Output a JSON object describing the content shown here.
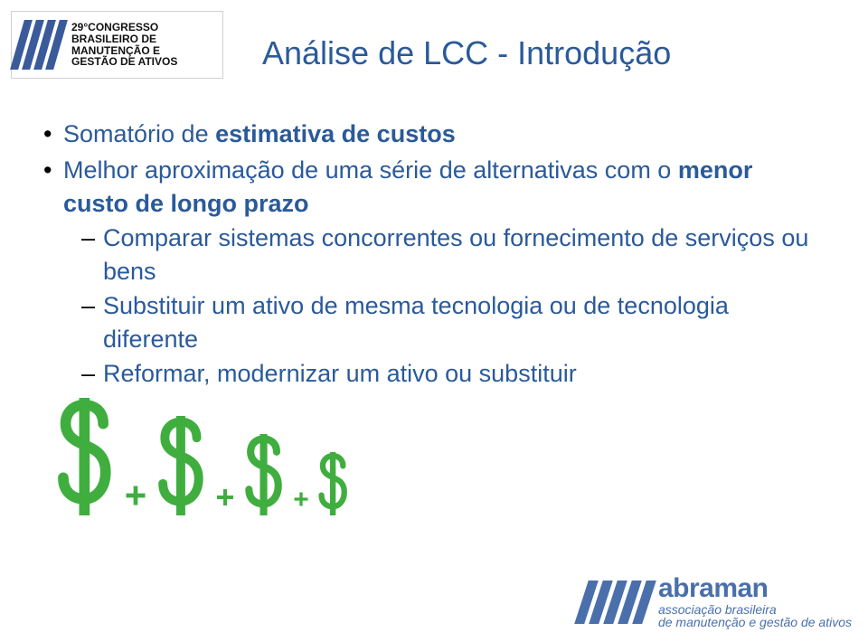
{
  "top_logo": {
    "l1": "29°CONGRESSO",
    "l2": "BRASILEIRO DE",
    "l3": "MANUTENÇÃO E",
    "l4": "GESTÃO DE ATIVOS"
  },
  "title": "Análise de LCC - Introdução",
  "bullets": {
    "b1_pre": "Somatório de ",
    "b1_bold": "estimativa de custos",
    "b2_pre": "Melhor aproximação de uma série de alternativas com o ",
    "b2_bold": "menor custo de longo prazo",
    "sub1": "Comparar sistemas concorrentes ou fornecimento de serviços ou bens",
    "sub2": "Substituir um ativo de mesma tecnologia ou de tecnologia diferente",
    "sub3": "Reformar, modernizar um ativo ou substituir"
  },
  "dollars": {
    "outline_color": "#3fae3f",
    "fill_color": "#ffffff",
    "plus_color": "#3fae3f",
    "sizes": [
      130,
      110,
      90,
      70
    ],
    "plus_sizes": [
      28,
      24,
      20
    ]
  },
  "bottom_logo": {
    "brand": "abraman",
    "line2": "associação brasileira",
    "line3": "de manutenção e gestão de ativos",
    "color": "#4a6faa"
  },
  "title_color": "#2a5a9a",
  "text_color": "#2a5a9a"
}
